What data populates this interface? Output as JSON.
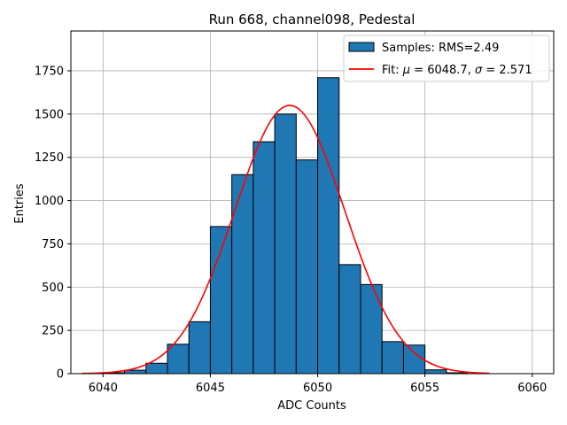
{
  "chart_data": {
    "type": "bar",
    "title": "Run 668, channel098, Pedestal",
    "xlabel": "ADC Counts",
    "ylabel": "Entries",
    "xlim": [
      6038.5,
      6061.0
    ],
    "ylim": [
      0,
      1980
    ],
    "xticks": [
      6040,
      6045,
      6050,
      6055,
      6060
    ],
    "yticks": [
      0,
      250,
      500,
      750,
      1000,
      1250,
      1500,
      1750
    ],
    "grid": true,
    "legend_position": "top-right",
    "bar_color": "#1f77b4",
    "fit_color": "#ff0000",
    "histogram": {
      "name": "Samples: RMS=2.49",
      "bin_edges": [
        6040,
        6041,
        6042,
        6043,
        6044,
        6045,
        6046,
        6047,
        6048,
        6049,
        6050,
        6051,
        6052,
        6053,
        6054,
        6055,
        6056,
        6057
      ],
      "counts": [
        5,
        20,
        60,
        170,
        300,
        850,
        1150,
        1340,
        1500,
        1235,
        1710,
        630,
        515,
        185,
        165,
        22,
        5
      ]
    },
    "fit": {
      "mu": 6048.7,
      "sigma": 2.571,
      "amplitude": 1550,
      "x_range": [
        6039,
        6058
      ]
    },
    "legend": [
      {
        "kind": "bar",
        "label": "Samples: RMS=2.49"
      },
      {
        "kind": "line",
        "prefix": "Fit: ",
        "mu_symbol": "μ",
        "mu_eq": " = 6048.7, ",
        "sigma_symbol": "σ",
        "sigma_eq": " = 2.571"
      }
    ]
  }
}
